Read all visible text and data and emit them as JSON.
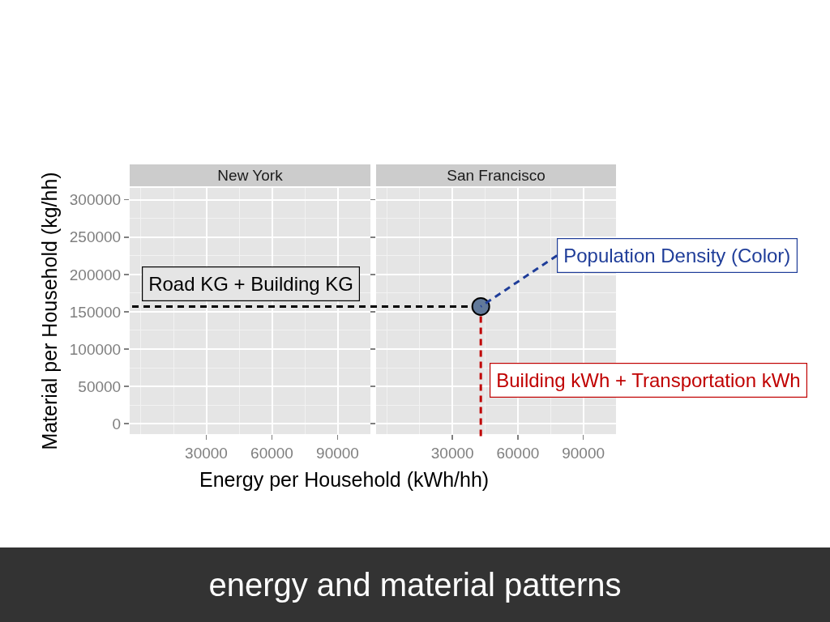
{
  "chart_data": [
    {
      "type": "scatter",
      "title": "New York",
      "xlabel": "Energy per Household (kWh/hh)",
      "ylabel": "Material per Household (kg/hh)",
      "xlim": [
        -5000,
        105000
      ],
      "xticks": [
        30000,
        60000,
        90000
      ],
      "ylim": [
        -14000,
        316000
      ],
      "yticks": [
        0,
        50000,
        100000,
        150000,
        200000,
        250000,
        300000
      ],
      "grid": true,
      "annotations": [
        "energy and material patterns"
      ]
    },
    {
      "type": "scatter",
      "title": "San Francisco",
      "x": [
        43000
      ],
      "values": [
        157000
      ],
      "color": "#61799a",
      "marker": "circle",
      "xlim": [
        -5000,
        105000
      ],
      "xticks": [
        30000,
        60000,
        90000
      ],
      "ylim": [
        -14000,
        316000
      ],
      "yticks": [
        0,
        50000,
        100000,
        150000,
        200000,
        250000,
        300000
      ],
      "grid": true,
      "tick_labels": "x",
      "ref_lines": [
        {
          "axis": "y",
          "value": 157000,
          "label": "Road KG + Building KG",
          "color": "#000000",
          "line_style": "dashed"
        },
        {
          "axis": "x",
          "value": 43000,
          "label": "Building kWh + Transportation kWh",
          "color": "#c00000",
          "line_style": "dashed"
        }
      ],
      "annotations": [
        {
          "text": "Population Density (Color)",
          "x": 43000,
          "y": 157000
        }
      ]
    }
  ]
}
